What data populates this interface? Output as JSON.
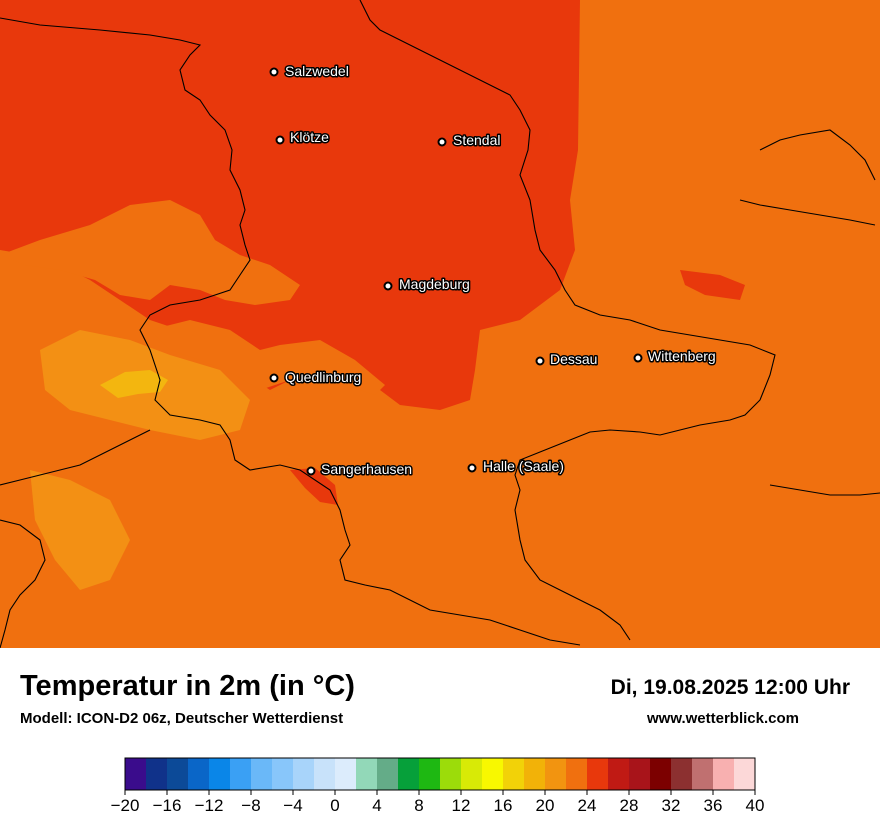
{
  "map": {
    "cities": [
      {
        "name": "Salzwedel"
      },
      {
        "name": "Klötze"
      },
      {
        "name": "Stendal"
      },
      {
        "name": "Magdeburg"
      },
      {
        "name": "Dessau"
      },
      {
        "name": "Wittenberg"
      },
      {
        "name": "Quedlinburg"
      },
      {
        "name": "Sangerhausen"
      },
      {
        "name": "Halle (Saale)"
      }
    ],
    "colors": {
      "base": "#f0700f",
      "warm": "#e8380c",
      "cool": "#f39014",
      "cooler": "#f3b60f"
    }
  },
  "header": {
    "title": "Temperatur in 2m (in °C)",
    "subtitle": "Modell: ICON-D2 06z, Deutscher Wetterdienst",
    "datetime": "Di, 19.08.2025 12:00 Uhr",
    "website": "www.wetterblick.com"
  },
  "legend": {
    "ticks": [
      "−20",
      "−16",
      "−12",
      "−8",
      "−4",
      "0",
      "4",
      "8",
      "12",
      "16",
      "20",
      "24",
      "28",
      "32",
      "36",
      "40"
    ],
    "colors": [
      "#3a0c8c",
      "#10328a",
      "#0c4a98",
      "#0a66c8",
      "#0a86e8",
      "#3aa0f4",
      "#6ab8f8",
      "#88c6fa",
      "#a8d4fa",
      "#c8e2fa",
      "#dcecfc",
      "#92d8b8",
      "#64ac88",
      "#06a03a",
      "#1eb812",
      "#9cdc0a",
      "#d8ea06",
      "#f8f800",
      "#f2d208",
      "#f2b208",
      "#f29410",
      "#f0700f",
      "#e8380c",
      "#c01a14",
      "#a8141a",
      "#7c0000",
      "#8c3030",
      "#c07070",
      "#f8b0b0",
      "#fcd8d8"
    ]
  }
}
